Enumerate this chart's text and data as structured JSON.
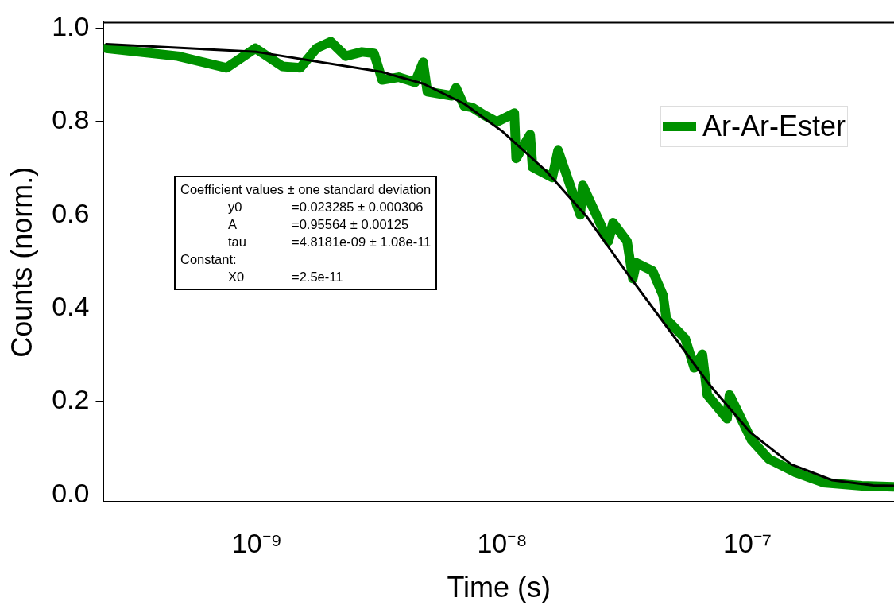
{
  "chart_data": {
    "type": "line",
    "xlabel": "Time (s)",
    "ylabel": "Counts (norm.)",
    "log": "x",
    "grid": false,
    "legend": "top right",
    "marker": "none",
    "line_style": "solid",
    "xlim": [
      2.37e-10,
      3.96e-07
    ],
    "xticks": [
      {
        "value": 1e-09,
        "label": "10⁻⁹"
      },
      {
        "value": 1e-08,
        "label": "10⁻⁸"
      },
      {
        "value": 1e-07,
        "label": "10⁻⁷"
      }
    ],
    "ylim": [
      -0.015,
      1.012
    ],
    "yticks": [
      {
        "value": 0,
        "label": "0.0"
      },
      {
        "value": 0.2,
        "label": "0.2"
      },
      {
        "value": 0.4,
        "label": "0.4"
      },
      {
        "value": 0.6,
        "label": "0.6"
      },
      {
        "value": 0.8,
        "label": "0.8"
      },
      {
        "value": 1,
        "label": "1.0"
      }
    ],
    "series": [
      {
        "name": "Ar-Ar-Ester",
        "color": "#009100",
        "x": [
          2.43e-10,
          4.75e-10,
          7.52e-10,
          9.85e-10,
          1.27e-09,
          1.5e-09,
          1.75e-09,
          2e-09,
          2.3e-09,
          2.68e-09,
          3e-09,
          3.24e-09,
          3.78e-09,
          4.41e-09,
          4.76e-09,
          4.95e-09,
          6.23e-09,
          6.48e-09,
          7e-09,
          7.55e-09,
          8.48e-09,
          9.51e-09,
          1.12e-08,
          1.14e-08,
          1.3e-08,
          1.33e-08,
          1.6e-08,
          1.69e-08,
          2.08e-08,
          2.13e-08,
          2.71e-08,
          2.83e-08,
          3.23e-08,
          3.41e-08,
          3.52e-08,
          4.1e-08,
          4.53e-08,
          4.67e-08,
          5.57e-08,
          6.07e-08,
          6.55e-08,
          6.86e-08,
          8.26e-08,
          8.45e-08,
          1.04e-07,
          1.22e-07,
          1.57e-07,
          2.04e-07,
          2.93e-07,
          3.93e-07
        ],
        "values": [
          0.957,
          0.94,
          0.915,
          0.957,
          0.918,
          0.915,
          0.957,
          0.971,
          0.94,
          0.949,
          0.946,
          0.889,
          0.895,
          0.884,
          0.927,
          0.864,
          0.855,
          0.872,
          0.833,
          0.83,
          0.813,
          0.799,
          0.818,
          0.721,
          0.772,
          0.702,
          0.68,
          0.738,
          0.6,
          0.663,
          0.543,
          0.583,
          0.543,
          0.463,
          0.497,
          0.48,
          0.427,
          0.376,
          0.335,
          0.272,
          0.301,
          0.214,
          0.163,
          0.214,
          0.117,
          0.077,
          0.048,
          0.026,
          0.019,
          0.017
        ]
      },
      {
        "color": "#000000",
        "x": [
          2.43e-10,
          1e-09,
          3.24e-09,
          4.76e-09,
          7e-09,
          1e-08,
          1.51e-08,
          2.22e-08,
          3.25e-08,
          4.78e-08,
          7.02e-08,
          1.03e-07,
          1.51e-07,
          2.22e-07,
          3.26e-07,
          3.96e-07
        ],
        "values": [
          0.966,
          0.949,
          0.906,
          0.881,
          0.838,
          0.779,
          0.694,
          0.595,
          0.473,
          0.354,
          0.235,
          0.133,
          0.065,
          0.031,
          0.02,
          0.019
        ]
      }
    ],
    "annotations": [
      "Coefficient values ± one standard deviation",
      "y0 =0.023285 ± 0.000306",
      "A =0.95564 ± 0.00125",
      "tau =4.8181e-09 ± 1.08e-11",
      "Constant:",
      "X0 =2.5e-11"
    ]
  }
}
